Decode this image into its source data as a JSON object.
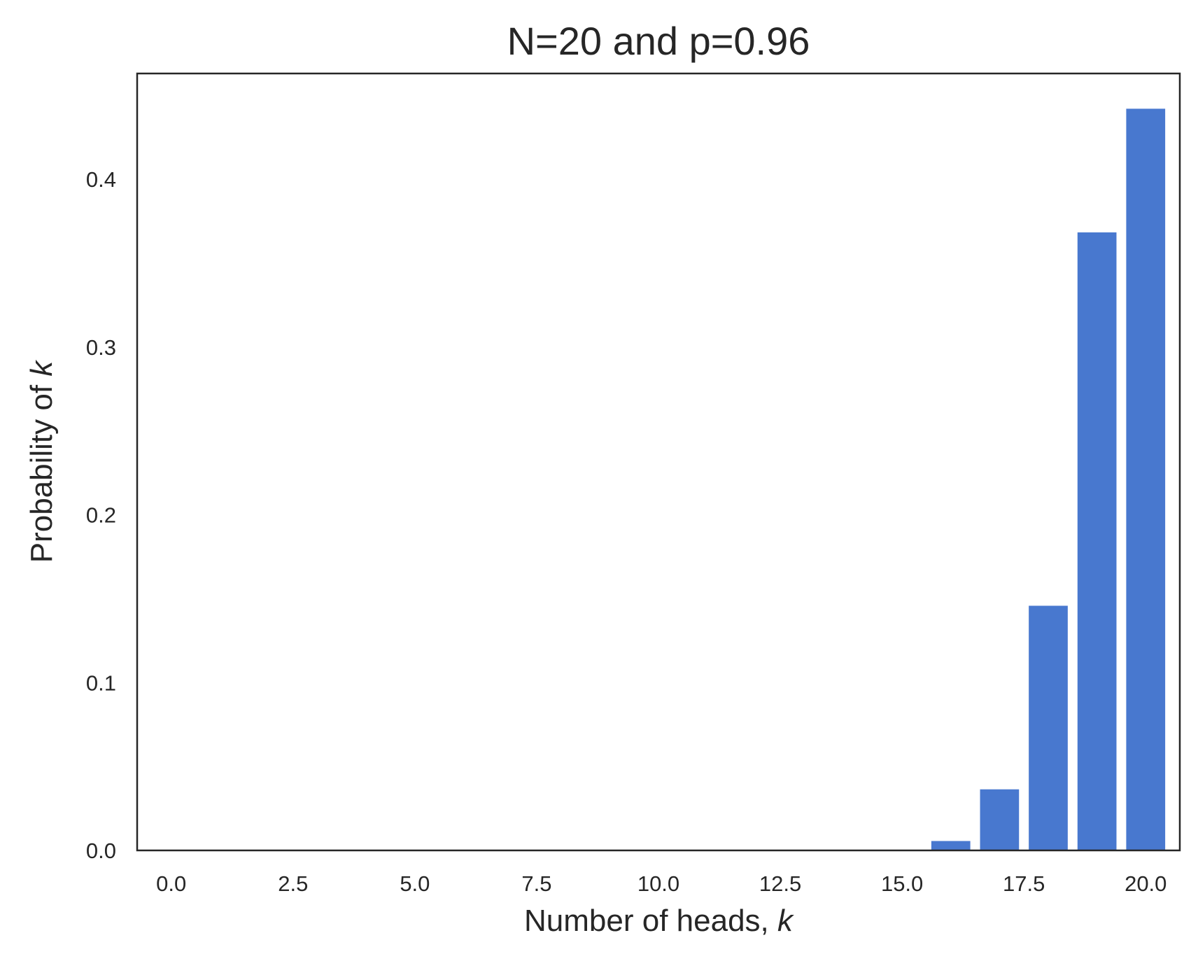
{
  "chart_data": {
    "type": "bar",
    "title": "N=20 and p=0.96",
    "xlabel_text": "Number of heads, ",
    "xlabel_var": "k",
    "ylabel_text": "Probability of ",
    "ylabel_var": "k",
    "xlim": [
      -0.7,
      20.7
    ],
    "ylim": [
      0,
      0.463
    ],
    "xticks": [
      0,
      2.5,
      5,
      7.5,
      10,
      12.5,
      15,
      17.5,
      20
    ],
    "xtick_labels": [
      "0.0",
      "2.5",
      "5.0",
      "7.5",
      "10.0",
      "12.5",
      "15.0",
      "17.5",
      "20.0"
    ],
    "yticks": [
      0,
      0.1,
      0.2,
      0.3,
      0.4
    ],
    "ytick_labels": [
      "0.0",
      "0.1",
      "0.2",
      "0.3",
      "0.4"
    ],
    "x": [
      0,
      1,
      2,
      3,
      4,
      5,
      6,
      7,
      8,
      9,
      10,
      11,
      12,
      13,
      14,
      15,
      16,
      17,
      18,
      19,
      20
    ],
    "values": [
      0,
      0,
      0,
      0,
      0,
      0,
      0,
      0,
      0,
      0,
      0,
      0,
      0,
      0,
      0.0,
      0.0003,
      0.0056,
      0.0364,
      0.1458,
      0.3683,
      0.442
    ],
    "bar_width": 0.8,
    "bar_color": "#4878cf",
    "grid": false,
    "legend": "none"
  }
}
